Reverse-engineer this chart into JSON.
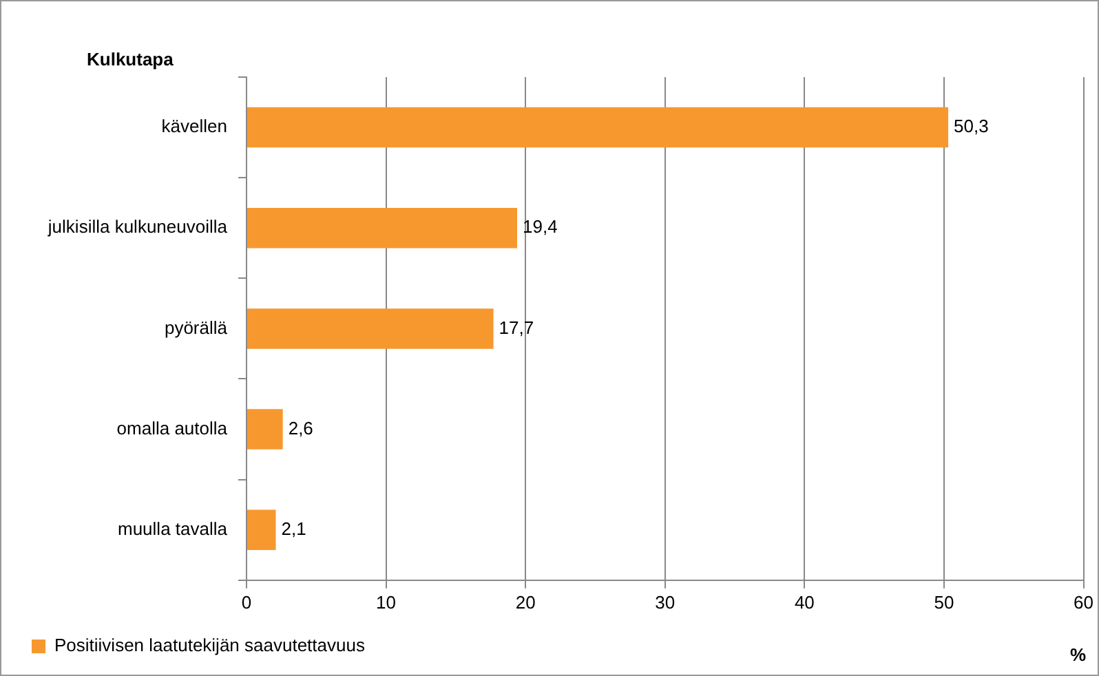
{
  "chart_data": {
    "type": "bar",
    "orientation": "horizontal",
    "ylabel": "Kulkutapa",
    "xlabel": "%",
    "categories": [
      "kävellen",
      "julkisilla kulkuneuvoilla",
      "pyörällä",
      "omalla autolla",
      "muulla tavalla"
    ],
    "series": [
      {
        "name": "Positiivisen laatutekijän saavutettavuus",
        "color": "#f7982f",
        "values": [
          50.3,
          19.4,
          17.7,
          2.6,
          2.1
        ],
        "value_labels": [
          "50,3",
          "19,4",
          "17,7",
          "2,6",
          "2,1"
        ]
      }
    ],
    "xlim": [
      0,
      60
    ],
    "xticks": [
      0,
      10,
      20,
      30,
      40,
      50,
      60
    ],
    "grid": "x",
    "legend": "bottom left"
  }
}
